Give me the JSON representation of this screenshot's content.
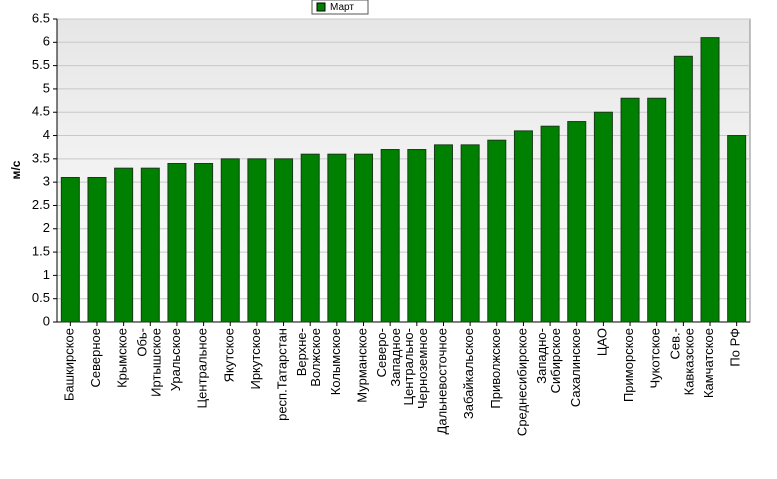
{
  "chart_data": {
    "type": "bar",
    "y_label": "м/с",
    "categories": [
      "Башкирское",
      "Северное",
      "Крымское",
      "Обь-\nИртышское",
      "Уральское",
      "Центральное",
      "Якутское",
      "Иркутское",
      "респ.Татарстан",
      "Верхне-\nВолжское",
      "Колымское",
      "Мурманское",
      "Северо-\nЗападное",
      "Центрально-\nЧерноземное",
      "Дальневосточное",
      "Забайкальское",
      "Приволжское",
      "Среднесибирское",
      "Западно-\nСибирское",
      "Сахалинское",
      "ЦАО",
      "Приморское",
      "Чукотское",
      "Сев.-\nКавказское",
      "Камчатское",
      "По РФ"
    ],
    "series": [
      {
        "name": "Март",
        "color": "#008000",
        "values": [
          3.1,
          3.1,
          3.3,
          3.3,
          3.4,
          3.4,
          3.5,
          3.5,
          3.5,
          3.6,
          3.6,
          3.6,
          3.7,
          3.7,
          3.8,
          3.8,
          3.9,
          4.1,
          4.2,
          4.3,
          4.5,
          4.8,
          4.8,
          5.7,
          6.1,
          4.0
        ]
      }
    ],
    "ylim": [
      0,
      6.5
    ],
    "yticks": [
      0,
      0.5,
      1,
      1.5,
      2,
      2.5,
      3,
      3.5,
      4,
      4.5,
      5,
      5.5,
      6,
      6.5
    ],
    "grid": true,
    "legend": "top"
  }
}
